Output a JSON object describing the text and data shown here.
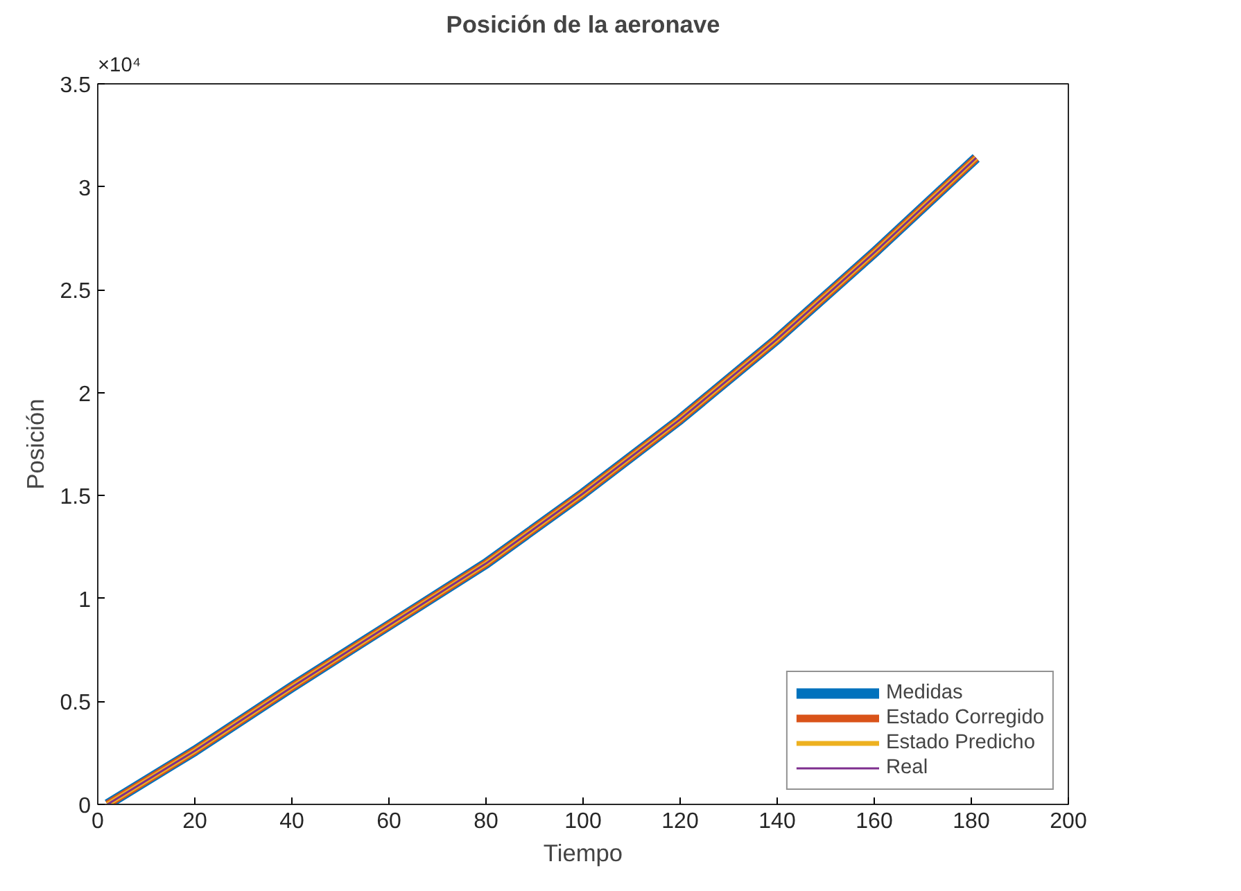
{
  "chart_data": {
    "type": "line",
    "title": "Posición de la aeronave",
    "xlabel": "Tiempo",
    "ylabel": "Posición",
    "annotations": [
      "×10⁴"
    ],
    "x": [
      2,
      20,
      40,
      60,
      80,
      100,
      120,
      140,
      160,
      181
    ],
    "series": [
      {
        "name": "Medidas",
        "color": "#0072bd",
        "values": [
          0,
          0.26,
          0.57,
          0.87,
          1.17,
          1.51,
          1.87,
          2.26,
          2.68,
          3.14
        ]
      },
      {
        "name": "Estado Corregido",
        "color": "#d95319",
        "values": [
          0,
          0.26,
          0.57,
          0.87,
          1.17,
          1.51,
          1.87,
          2.26,
          2.68,
          3.14
        ]
      },
      {
        "name": "Estado Predicho",
        "color": "#edb120",
        "values": [
          0,
          0.26,
          0.57,
          0.87,
          1.17,
          1.51,
          1.87,
          2.26,
          2.68,
          3.14
        ]
      },
      {
        "name": "Real",
        "color": "#7e2f8e",
        "values": [
          0,
          0.26,
          0.57,
          0.87,
          1.17,
          1.51,
          1.87,
          2.26,
          2.68,
          3.14
        ]
      }
    ],
    "xlim": [
      0,
      200
    ],
    "xticks": [
      0,
      20,
      40,
      60,
      80,
      100,
      120,
      140,
      160,
      180,
      200
    ],
    "ylim": [
      0,
      3.5
    ],
    "yticks": [
      0,
      0.5,
      1,
      1.5,
      2,
      2.5,
      3,
      3.5
    ],
    "grid": false,
    "legend": "bottom right",
    "marker": "none",
    "line_style": "solid"
  }
}
